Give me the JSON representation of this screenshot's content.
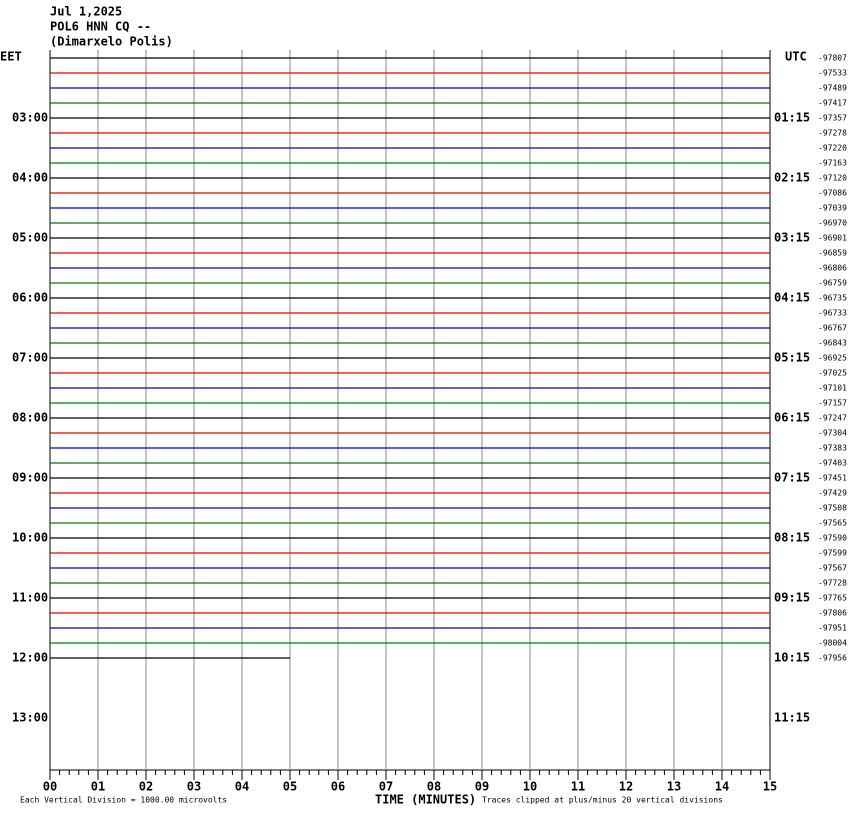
{
  "header": {
    "lines": [
      "Jul 1,2025",
      "POL6 HNN CQ --",
      "(Dimarxelo Polis)"
    ]
  },
  "left_zone": "EET",
  "right_zone": "UTC",
  "left_times": [
    "03:00",
    "04:00",
    "05:00",
    "06:00",
    "07:00",
    "08:00",
    "09:00",
    "10:00",
    "11:00",
    "12:00",
    "13:00"
  ],
  "right_times": [
    "01:15",
    "02:15",
    "03:15",
    "04:15",
    "05:15",
    "06:15",
    "07:15",
    "08:15",
    "09:15",
    "10:15",
    "11:15"
  ],
  "trace_offsets": [
    -97807,
    -97533,
    -97489,
    -97417,
    -97357,
    -97278,
    -97220,
    -97163,
    -97120,
    -97086,
    -97039,
    -96970,
    -96901,
    -96859,
    -96806,
    -96759,
    -96735,
    -96733,
    -96767,
    -96843,
    -96925,
    -97025,
    -97101,
    -97157,
    -97247,
    -97304,
    -97383,
    -97403,
    -97451,
    -97429,
    -97508,
    -97565,
    -97590,
    -97599,
    -97567,
    -97728,
    -97765,
    -97806,
    -97951,
    -98004,
    -97956
  ],
  "trace_colors": [
    "#000000",
    "#e00000",
    "#0000cc",
    "#007a00"
  ],
  "last_trace_minutes": 5,
  "x_ticks": [
    "00",
    "01",
    "02",
    "03",
    "04",
    "05",
    "06",
    "07",
    "08",
    "09",
    "10",
    "11",
    "12",
    "13",
    "14",
    "15"
  ],
  "x_label": "TIME (MINUTES)",
  "footer_left": "Each Vertical Division = 1000.00 microvolts",
  "footer_right": "Traces clipped at plus/minus 20 vertical divisions"
}
